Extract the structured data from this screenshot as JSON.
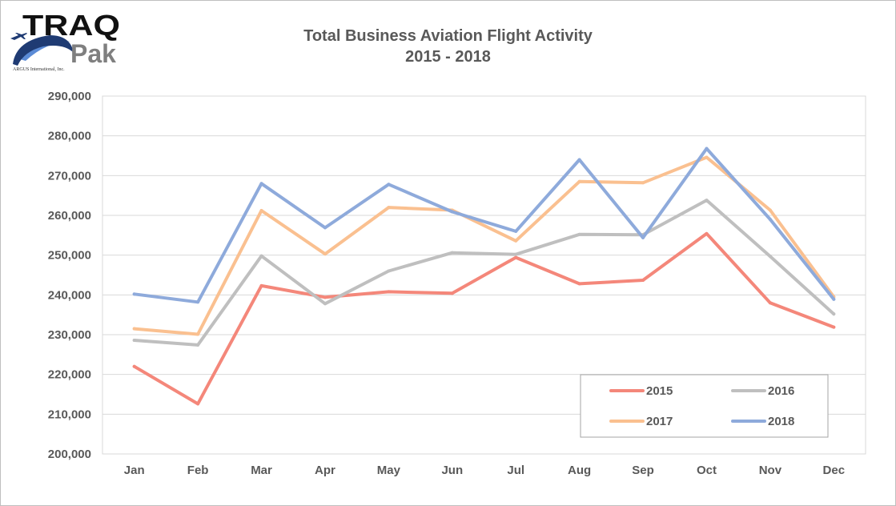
{
  "logo": {
    "brand_top": "TRAQ",
    "brand_bottom": "Pak",
    "company": "ARGUS International, Inc.",
    "colors": {
      "navy": "#1f3b73",
      "blue": "#5b8bd6",
      "gray": "#7f7f7f",
      "black": "#111111"
    }
  },
  "chart_data": {
    "type": "line",
    "title": "Total Business Aviation Flight Activity",
    "subtitle": "2015 - 2018",
    "categories": [
      "Jan",
      "Feb",
      "Mar",
      "Apr",
      "May",
      "Jun",
      "Jul",
      "Aug",
      "Sep",
      "Oct",
      "Nov",
      "Dec"
    ],
    "ylim": [
      200000,
      290000
    ],
    "yticks": [
      200000,
      210000,
      220000,
      230000,
      240000,
      250000,
      260000,
      270000,
      280000,
      290000
    ],
    "ytick_labels": [
      "200,000",
      "210,000",
      "220,000",
      "230,000",
      "240,000",
      "250,000",
      "260,000",
      "270,000",
      "280,000",
      "290,000"
    ],
    "grid": true,
    "legend_position": "bottom-right",
    "series": [
      {
        "name": "2015",
        "color": "#f4877a",
        "values": [
          222000,
          212600,
          242300,
          239400,
          240800,
          240400,
          249400,
          242800,
          243700,
          255400,
          238000,
          231900
        ]
      },
      {
        "name": "2016",
        "color": "#bfbfbf",
        "values": [
          228600,
          227400,
          249800,
          237800,
          246000,
          250600,
          250200,
          255200,
          255100,
          263800,
          249700,
          235200
        ]
      },
      {
        "name": "2017",
        "color": "#fac090",
        "values": [
          231500,
          230100,
          261200,
          250300,
          262000,
          261300,
          253600,
          268500,
          268200,
          274600,
          261300,
          239500
        ]
      },
      {
        "name": "2018",
        "color": "#8eaadb",
        "values": [
          240200,
          238200,
          268000,
          256900,
          267800,
          260900,
          256000,
          274000,
          254400,
          276800,
          259000,
          238900
        ]
      }
    ]
  }
}
